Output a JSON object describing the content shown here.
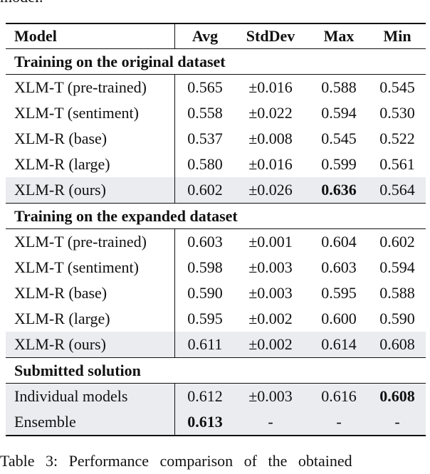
{
  "top_text": "model.",
  "table": {
    "header": [
      "Model",
      "Avg",
      "StdDev",
      "Max",
      "Min"
    ],
    "sections": [
      {
        "title": "Training on the original dataset",
        "rows": [
          [
            "XLM-T (pre-trained)",
            "0.565",
            "±0.016",
            "0.588",
            "0.545"
          ],
          [
            "XLM-T (sentiment)",
            "0.558",
            "±0.022",
            "0.594",
            "0.530"
          ],
          [
            "XLM-R (base)",
            "0.537",
            "±0.008",
            "0.545",
            "0.522"
          ],
          [
            "XLM-R (large)",
            "0.580",
            "±0.016",
            "0.599",
            "0.561"
          ],
          [
            "XLM-R (ours)",
            "0.602",
            "±0.026",
            "0.636",
            "0.564"
          ]
        ],
        "highlight_rows": [
          4
        ],
        "bold_cells": [
          [
            4,
            3
          ]
        ]
      },
      {
        "title": "Training on the expanded dataset",
        "rows": [
          [
            "XLM-T (pre-trained)",
            "0.603",
            "±0.001",
            "0.604",
            "0.602"
          ],
          [
            "XLM-T (sentiment)",
            "0.598",
            "±0.003",
            "0.603",
            "0.594"
          ],
          [
            "XLM-R (base)",
            "0.590",
            "±0.003",
            "0.595",
            "0.588"
          ],
          [
            "XLM-R (large)",
            "0.595",
            "±0.002",
            "0.600",
            "0.590"
          ],
          [
            "XLM-R (ours)",
            "0.611",
            "±0.002",
            "0.614",
            "0.608"
          ]
        ],
        "highlight_rows": [
          4
        ],
        "bold_cells": []
      },
      {
        "title": "Submitted solution",
        "rows": [
          [
            "Individual models",
            "0.612",
            "±0.003",
            "0.616",
            "0.608"
          ],
          [
            "Ensemble",
            "0.613",
            "-",
            "-",
            "-"
          ]
        ],
        "highlight_rows": [
          0,
          1
        ],
        "bold_cells": [
          [
            0,
            4
          ],
          [
            1,
            1
          ]
        ]
      }
    ]
  },
  "caption": "Table 3:   Performance comparison of the obtained"
}
